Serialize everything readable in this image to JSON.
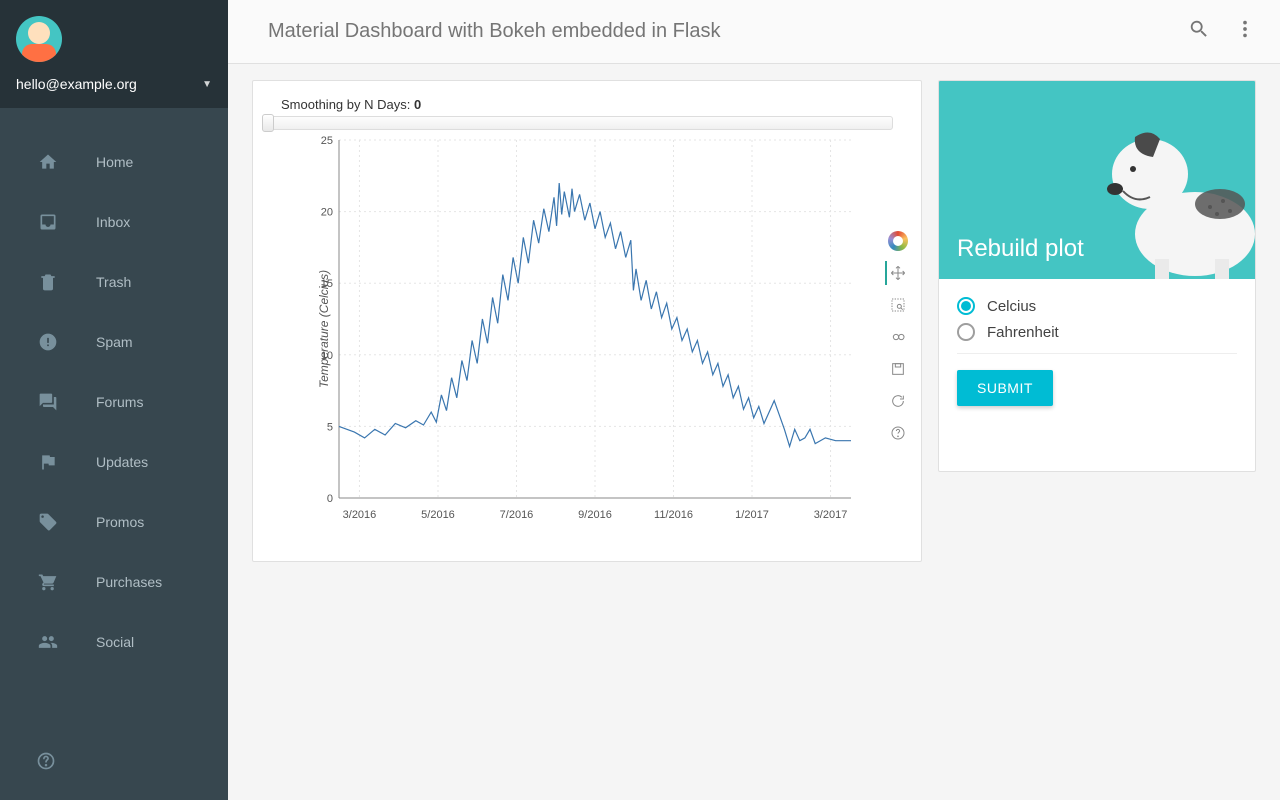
{
  "sidebar": {
    "email": "hello@example.org",
    "items": [
      {
        "icon": "home",
        "label": "Home"
      },
      {
        "icon": "inbox",
        "label": "Inbox"
      },
      {
        "icon": "trash",
        "label": "Trash"
      },
      {
        "icon": "spam",
        "label": "Spam"
      },
      {
        "icon": "forums",
        "label": "Forums"
      },
      {
        "icon": "updates",
        "label": "Updates"
      },
      {
        "icon": "promos",
        "label": "Promos"
      },
      {
        "icon": "purchases",
        "label": "Purchases"
      },
      {
        "icon": "social",
        "label": "Social"
      }
    ]
  },
  "header": {
    "title": "Material Dashboard with Bokeh embedded in Flask"
  },
  "chart": {
    "slider_label_prefix": "Smoothing by N Days: ",
    "slider_value": "0",
    "type": "line",
    "ylabel": "Temperature (Celcius)",
    "ylim": [
      0,
      25
    ],
    "ytick_step": 5,
    "x_ticks": [
      "3/2016",
      "5/2016",
      "7/2016",
      "9/2016",
      "11/2016",
      "1/2017",
      "3/2017"
    ],
    "line_color": "#3a76af",
    "grid_color": "#e5e5e5",
    "axis_color": "#888888",
    "tick_font_size": 11,
    "label_font_size": 12,
    "background_color": "#ffffff",
    "series": [
      {
        "x": 0.0,
        "y": 5.0
      },
      {
        "x": 0.03,
        "y": 4.6
      },
      {
        "x": 0.05,
        "y": 4.2
      },
      {
        "x": 0.07,
        "y": 4.8
      },
      {
        "x": 0.09,
        "y": 4.4
      },
      {
        "x": 0.11,
        "y": 5.2
      },
      {
        "x": 0.13,
        "y": 4.9
      },
      {
        "x": 0.15,
        "y": 5.4
      },
      {
        "x": 0.165,
        "y": 5.1
      },
      {
        "x": 0.18,
        "y": 6.0
      },
      {
        "x": 0.19,
        "y": 5.3
      },
      {
        "x": 0.2,
        "y": 7.2
      },
      {
        "x": 0.21,
        "y": 6.1
      },
      {
        "x": 0.22,
        "y": 8.4
      },
      {
        "x": 0.23,
        "y": 7.0
      },
      {
        "x": 0.24,
        "y": 9.6
      },
      {
        "x": 0.25,
        "y": 8.2
      },
      {
        "x": 0.26,
        "y": 11.0
      },
      {
        "x": 0.27,
        "y": 9.4
      },
      {
        "x": 0.28,
        "y": 12.5
      },
      {
        "x": 0.29,
        "y": 10.8
      },
      {
        "x": 0.3,
        "y": 14.0
      },
      {
        "x": 0.31,
        "y": 12.2
      },
      {
        "x": 0.32,
        "y": 15.6
      },
      {
        "x": 0.33,
        "y": 13.8
      },
      {
        "x": 0.34,
        "y": 16.8
      },
      {
        "x": 0.35,
        "y": 15.0
      },
      {
        "x": 0.36,
        "y": 18.2
      },
      {
        "x": 0.37,
        "y": 16.4
      },
      {
        "x": 0.38,
        "y": 19.4
      },
      {
        "x": 0.39,
        "y": 17.8
      },
      {
        "x": 0.4,
        "y": 20.2
      },
      {
        "x": 0.41,
        "y": 18.6
      },
      {
        "x": 0.42,
        "y": 21.0
      },
      {
        "x": 0.425,
        "y": 19.0
      },
      {
        "x": 0.43,
        "y": 22.0
      },
      {
        "x": 0.435,
        "y": 19.8
      },
      {
        "x": 0.44,
        "y": 21.4
      },
      {
        "x": 0.45,
        "y": 19.6
      },
      {
        "x": 0.455,
        "y": 21.6
      },
      {
        "x": 0.46,
        "y": 20.0
      },
      {
        "x": 0.47,
        "y": 21.2
      },
      {
        "x": 0.48,
        "y": 19.4
      },
      {
        "x": 0.49,
        "y": 20.6
      },
      {
        "x": 0.5,
        "y": 18.8
      },
      {
        "x": 0.51,
        "y": 20.0
      },
      {
        "x": 0.52,
        "y": 18.2
      },
      {
        "x": 0.53,
        "y": 19.2
      },
      {
        "x": 0.54,
        "y": 17.4
      },
      {
        "x": 0.55,
        "y": 18.6
      },
      {
        "x": 0.56,
        "y": 16.8
      },
      {
        "x": 0.57,
        "y": 18.0
      },
      {
        "x": 0.575,
        "y": 14.5
      },
      {
        "x": 0.58,
        "y": 16.0
      },
      {
        "x": 0.59,
        "y": 13.8
      },
      {
        "x": 0.6,
        "y": 15.2
      },
      {
        "x": 0.61,
        "y": 13.2
      },
      {
        "x": 0.62,
        "y": 14.4
      },
      {
        "x": 0.63,
        "y": 12.6
      },
      {
        "x": 0.64,
        "y": 13.6
      },
      {
        "x": 0.65,
        "y": 11.8
      },
      {
        "x": 0.66,
        "y": 12.6
      },
      {
        "x": 0.67,
        "y": 11.0
      },
      {
        "x": 0.68,
        "y": 11.8
      },
      {
        "x": 0.69,
        "y": 10.2
      },
      {
        "x": 0.7,
        "y": 11.0
      },
      {
        "x": 0.71,
        "y": 9.4
      },
      {
        "x": 0.72,
        "y": 10.2
      },
      {
        "x": 0.73,
        "y": 8.6
      },
      {
        "x": 0.74,
        "y": 9.4
      },
      {
        "x": 0.75,
        "y": 7.8
      },
      {
        "x": 0.76,
        "y": 8.6
      },
      {
        "x": 0.77,
        "y": 7.0
      },
      {
        "x": 0.78,
        "y": 7.8
      },
      {
        "x": 0.79,
        "y": 6.2
      },
      {
        "x": 0.8,
        "y": 7.0
      },
      {
        "x": 0.81,
        "y": 5.6
      },
      {
        "x": 0.82,
        "y": 6.4
      },
      {
        "x": 0.83,
        "y": 5.2
      },
      {
        "x": 0.84,
        "y": 6.0
      },
      {
        "x": 0.85,
        "y": 6.8
      },
      {
        "x": 0.86,
        "y": 5.8
      },
      {
        "x": 0.87,
        "y": 4.8
      },
      {
        "x": 0.88,
        "y": 3.6
      },
      {
        "x": 0.89,
        "y": 4.8
      },
      {
        "x": 0.9,
        "y": 4.0
      },
      {
        "x": 0.91,
        "y": 4.2
      },
      {
        "x": 0.92,
        "y": 4.8
      },
      {
        "x": 0.93,
        "y": 3.8
      },
      {
        "x": 0.95,
        "y": 4.2
      },
      {
        "x": 0.97,
        "y": 4.0
      },
      {
        "x": 1.0,
        "y": 4.0
      }
    ]
  },
  "side_card": {
    "title": "Rebuild plot",
    "options": [
      {
        "label": "Celcius",
        "checked": true
      },
      {
        "label": "Fahrenheit",
        "checked": false
      }
    ],
    "submit_label": "SUBMIT",
    "hero_bg": "#44c5c3",
    "accent": "#00bcd4"
  }
}
